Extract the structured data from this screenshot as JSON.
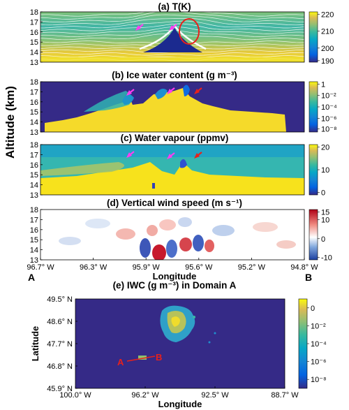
{
  "figure": {
    "shared_ylabel": "Altitude (km)",
    "shared_xlabel": "Longitude",
    "endpoint_labels": [
      "A",
      "B"
    ],
    "section_lon_ticks": [
      "96.7° W",
      "96.3° W",
      "95.9° W",
      "95.6° W",
      "95.2° W",
      "94.8° W"
    ],
    "colors": {
      "arrow": "#ff3df0",
      "arrow_red": "#e8211b",
      "circle": "#e8211b",
      "section_line": "#e8211b"
    }
  },
  "chart_data": [
    {
      "type": "heatmap",
      "title": "(a) T(K)",
      "y_ticks": [
        "13",
        "14",
        "15",
        "16",
        "17",
        "18"
      ],
      "ylim": [
        13,
        18
      ],
      "xlim_lon": [
        -96.7,
        -94.8
      ],
      "colorbar": {
        "ticks": [
          "220",
          "210",
          "200",
          "190"
        ],
        "range": [
          190,
          220
        ]
      },
      "annotations": {
        "arrows_lon": [
          -96.05,
          -95.75
        ],
        "circle_center": [
          -95.55,
          16.4
        ]
      }
    },
    {
      "type": "heatmap",
      "title": "(b) Ice water content (g m⁻³)",
      "y_ticks": [
        "13",
        "14",
        "15",
        "16",
        "17",
        "18"
      ],
      "ylim": [
        13,
        18
      ],
      "colorbar": {
        "ticks": [
          "1",
          "10⁻²",
          "10⁻⁴",
          "10⁻⁶",
          "10⁻⁸"
        ],
        "log": true,
        "range": [
          1e-09,
          1
        ]
      },
      "annotations": {
        "arrows_lon": [
          -96.05,
          -95.75,
          -95.55
        ]
      }
    },
    {
      "type": "heatmap",
      "title": "(c) Water vapour (ppmv)",
      "y_ticks": [
        "13",
        "14",
        "15",
        "16",
        "17",
        "18"
      ],
      "ylim": [
        13,
        18
      ],
      "colorbar": {
        "ticks": [
          "20",
          "10",
          "0"
        ],
        "range": [
          0,
          20
        ]
      },
      "annotations": {
        "arrows_lon": [
          -96.05,
          -95.75,
          -95.55
        ]
      }
    },
    {
      "type": "heatmap",
      "title": "(d) Vertical wind speed (m s⁻¹)",
      "y_ticks": [
        "13",
        "14",
        "15",
        "16",
        "17",
        "18"
      ],
      "ylim": [
        13,
        18
      ],
      "colorbar": {
        "ticks": [
          "15",
          "10",
          "0",
          "-10"
        ],
        "range": [
          -10,
          15
        ]
      }
    },
    {
      "type": "heatmap",
      "title": "(e) IWC (g m⁻³) in Domain A",
      "xlabel": "Longitude",
      "ylabel": "Latitude",
      "x_ticks": [
        "100.0° W",
        "96.2° W",
        "92.5° W",
        "88.7° W"
      ],
      "y_ticks": [
        "49.5° N",
        "48.6° N",
        "47.7° N",
        "46.8° N",
        "45.9° N"
      ],
      "colorbar": {
        "ticks": [
          "0",
          "10⁻²",
          "10⁻⁴",
          "10⁻⁶",
          "10⁻⁸"
        ],
        "log": true
      },
      "section_line": {
        "labels": [
          "A",
          "B"
        ],
        "from": [
          -96.7,
          46.75
        ],
        "to": [
          -94.8,
          46.95
        ]
      }
    }
  ]
}
